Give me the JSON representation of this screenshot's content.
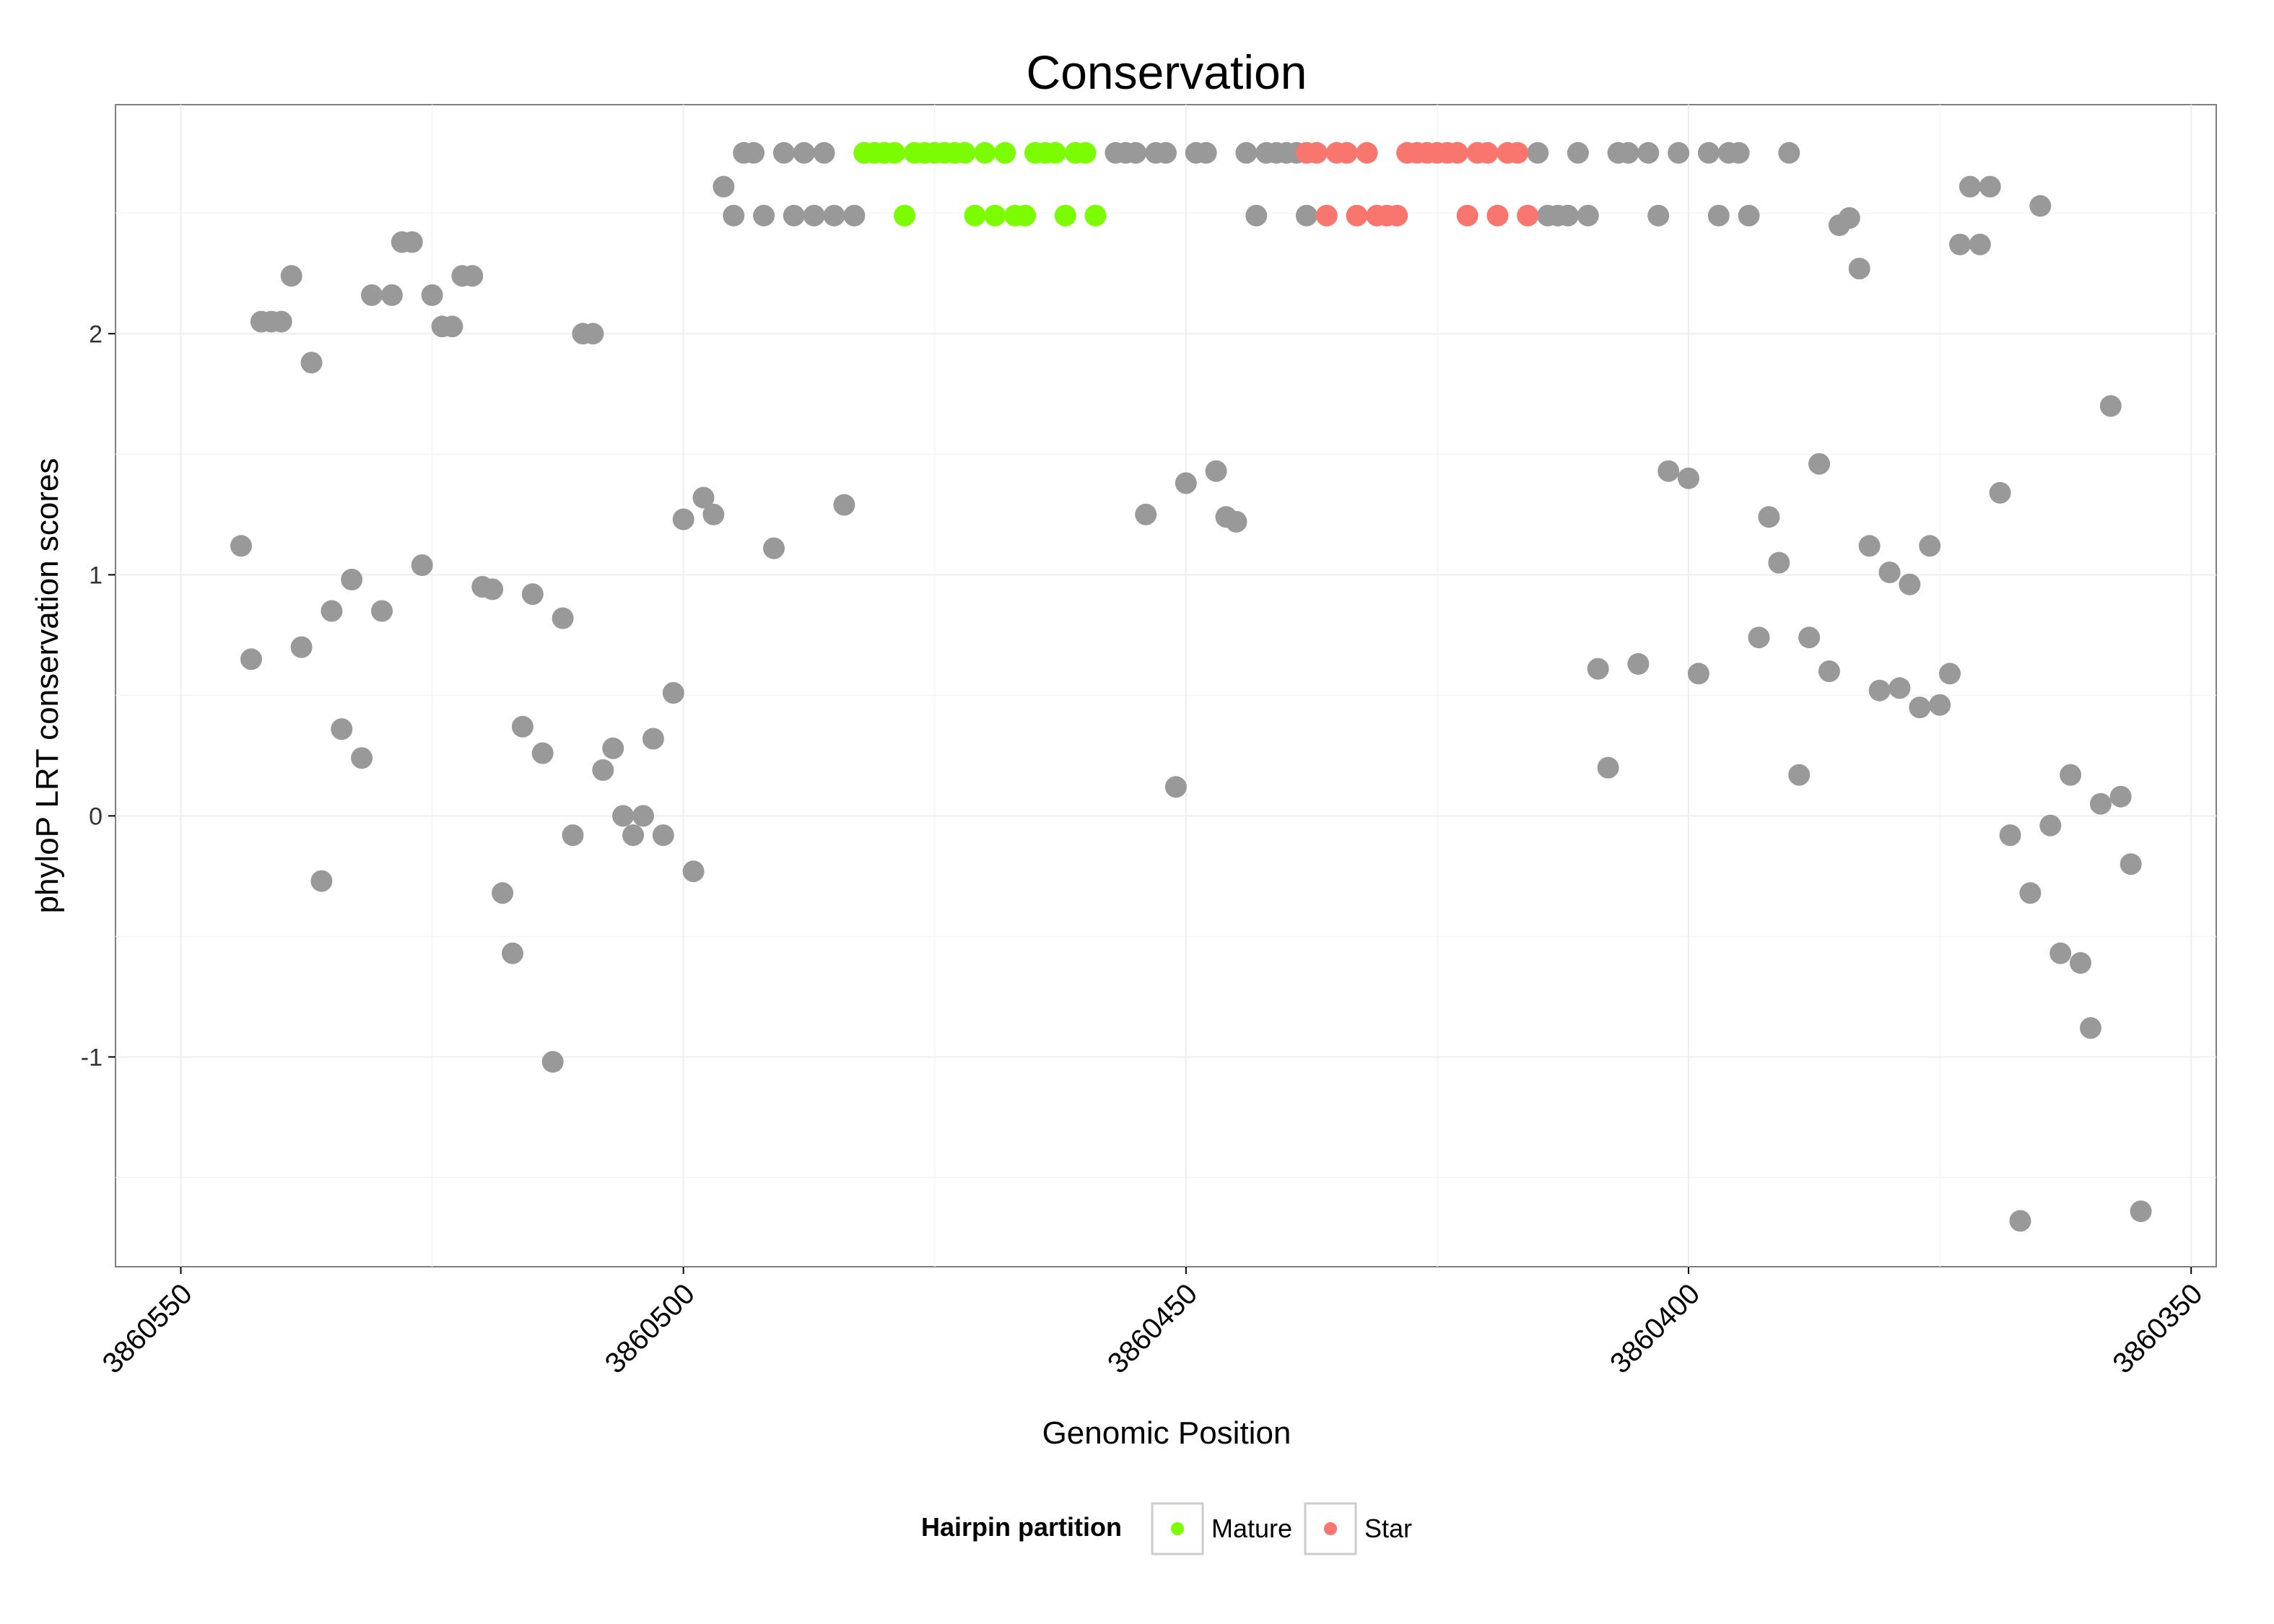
{
  "chart_data": {
    "type": "scatter",
    "title": "Conservation",
    "xlabel": "Genomic Position",
    "ylabel": "phyloP LRT conservation scores",
    "x_reversed": true,
    "xlim": [
      3860556.5,
      3860347.5
    ],
    "ylim": [
      -1.87,
      2.95
    ],
    "x_ticks": [
      3860550,
      3860500,
      3860450,
      3860400,
      3860350
    ],
    "x_tick_labels": [
      "3860550",
      "3860500",
      "3860450",
      "3860400",
      "3860350"
    ],
    "y_ticks": [
      -1,
      0,
      1,
      2
    ],
    "y_tick_labels": [
      "-1",
      "0",
      "1",
      "2"
    ],
    "grid": true,
    "legend": {
      "title": "Hairpin partition",
      "position": "bottom",
      "entries": [
        {
          "name": "Mature",
          "color": "#7CFC00"
        },
        {
          "name": "Star",
          "color": "#F8766D"
        }
      ]
    },
    "colors": {
      "other": "#999999",
      "Mature": "#7CFC00",
      "Star": "#F8766D"
    },
    "series": [
      {
        "group": "other",
        "points": [
          [
            3860544,
            1.12
          ],
          [
            3860543,
            0.65
          ],
          [
            3860542,
            2.05
          ],
          [
            3860541,
            2.05
          ],
          [
            3860540,
            2.05
          ],
          [
            3860539,
            2.24
          ],
          [
            3860538,
            0.7
          ],
          [
            3860537,
            1.88
          ],
          [
            3860536,
            -0.27
          ],
          [
            3860535,
            0.85
          ],
          [
            3860534,
            0.36
          ],
          [
            3860533,
            0.98
          ],
          [
            3860532,
            0.24
          ],
          [
            3860531,
            2.16
          ],
          [
            3860530,
            0.85
          ],
          [
            3860529,
            2.16
          ],
          [
            3860528,
            2.38
          ],
          [
            3860527,
            2.38
          ],
          [
            3860526,
            1.04
          ],
          [
            3860525,
            2.16
          ],
          [
            3860524,
            2.03
          ],
          [
            3860523,
            2.03
          ],
          [
            3860522,
            2.24
          ],
          [
            3860521,
            2.24
          ],
          [
            3860520,
            0.95
          ],
          [
            3860519,
            0.94
          ],
          [
            3860518,
            -0.32
          ],
          [
            3860517,
            -0.57
          ],
          [
            3860516,
            0.37
          ],
          [
            3860515,
            0.92
          ],
          [
            3860514,
            0.26
          ],
          [
            3860513,
            -1.02
          ],
          [
            3860512,
            0.82
          ],
          [
            3860511,
            -0.08
          ],
          [
            3860510,
            2.0
          ],
          [
            3860509,
            2.0
          ],
          [
            3860508,
            0.19
          ],
          [
            3860507,
            0.28
          ],
          [
            3860506,
            0.0
          ],
          [
            3860505,
            -0.08
          ],
          [
            3860504,
            0.0
          ],
          [
            3860503,
            0.32
          ],
          [
            3860502,
            -0.08
          ],
          [
            3860501,
            0.51
          ],
          [
            3860500,
            1.23
          ],
          [
            3860499,
            -0.23
          ],
          [
            3860498,
            1.32
          ],
          [
            3860497,
            1.25
          ],
          [
            3860496,
            2.61
          ],
          [
            3860495,
            2.49
          ],
          [
            3860494,
            2.75
          ],
          [
            3860493,
            2.75
          ],
          [
            3860492,
            2.49
          ],
          [
            3860491,
            1.11
          ],
          [
            3860490,
            2.75
          ],
          [
            3860489,
            2.49
          ],
          [
            3860488,
            2.75
          ],
          [
            3860487,
            2.49
          ],
          [
            3860486,
            2.75
          ],
          [
            3860485,
            2.49
          ],
          [
            3860484,
            1.29
          ],
          [
            3860483,
            2.49
          ],
          [
            3860482,
            2.75
          ],
          [
            3860457,
            2.75
          ],
          [
            3860456,
            2.75
          ],
          [
            3860455,
            2.75
          ],
          [
            3860454,
            1.25
          ],
          [
            3860453,
            2.75
          ],
          [
            3860452,
            2.75
          ],
          [
            3860451,
            0.12
          ],
          [
            3860450,
            1.38
          ],
          [
            3860449,
            2.75
          ],
          [
            3860448,
            2.75
          ],
          [
            3860447,
            1.43
          ],
          [
            3860446,
            1.24
          ],
          [
            3860445,
            1.22
          ],
          [
            3860444,
            2.75
          ],
          [
            3860443,
            2.49
          ],
          [
            3860442,
            2.75
          ],
          [
            3860441,
            2.75
          ],
          [
            3860440,
            2.75
          ],
          [
            3860439,
            2.75
          ],
          [
            3860438,
            2.49
          ],
          [
            3860415,
            2.75
          ],
          [
            3860414,
            2.49
          ],
          [
            3860413,
            2.49
          ],
          [
            3860412,
            2.49
          ],
          [
            3860411,
            2.75
          ],
          [
            3860410,
            2.49
          ],
          [
            3860409,
            0.61
          ],
          [
            3860408,
            0.2
          ],
          [
            3860407,
            2.75
          ],
          [
            3860406,
            2.75
          ],
          [
            3860405,
            0.63
          ],
          [
            3860404,
            2.75
          ],
          [
            3860403,
            2.49
          ],
          [
            3860402,
            1.43
          ],
          [
            3860401,
            2.75
          ],
          [
            3860400,
            1.4
          ],
          [
            3860399,
            0.59
          ],
          [
            3860398,
            2.75
          ],
          [
            3860397,
            2.49
          ],
          [
            3860396,
            2.75
          ],
          [
            3860395,
            2.75
          ],
          [
            3860394,
            2.49
          ],
          [
            3860393,
            0.74
          ],
          [
            3860392,
            1.24
          ],
          [
            3860391,
            1.05
          ],
          [
            3860390,
            2.75
          ],
          [
            3860389,
            0.17
          ],
          [
            3860388,
            0.74
          ],
          [
            3860387,
            1.46
          ],
          [
            3860386,
            0.6
          ],
          [
            3860385,
            2.45
          ],
          [
            3860384,
            2.48
          ],
          [
            3860383,
            2.27
          ],
          [
            3860382,
            1.12
          ],
          [
            3860381,
            0.52
          ],
          [
            3860380,
            1.01
          ],
          [
            3860379,
            0.53
          ],
          [
            3860378,
            0.96
          ],
          [
            3860377,
            0.45
          ],
          [
            3860376,
            1.12
          ],
          [
            3860375,
            0.46
          ],
          [
            3860374,
            0.59
          ],
          [
            3860373,
            2.37
          ],
          [
            3860372,
            2.61
          ],
          [
            3860371,
            2.37
          ],
          [
            3860370,
            2.61
          ],
          [
            3860369,
            1.34
          ],
          [
            3860368,
            -0.08
          ],
          [
            3860367,
            -1.68
          ],
          [
            3860366,
            -0.32
          ],
          [
            3860365,
            2.53
          ],
          [
            3860364,
            -0.04
          ],
          [
            3860363,
            -0.57
          ],
          [
            3860362,
            0.17
          ],
          [
            3860361,
            -0.61
          ],
          [
            3860360,
            -0.88
          ],
          [
            3860359,
            0.05
          ],
          [
            3860358,
            1.7
          ],
          [
            3860357,
            0.08
          ],
          [
            3860356,
            -0.2
          ],
          [
            3860355,
            -1.64
          ]
        ]
      },
      {
        "group": "Mature",
        "name": "Mature",
        "points": [
          [
            3860482,
            2.75
          ],
          [
            3860481,
            2.75
          ],
          [
            3860480,
            2.75
          ],
          [
            3860479,
            2.75
          ],
          [
            3860478,
            2.49
          ],
          [
            3860477,
            2.75
          ],
          [
            3860476,
            2.75
          ],
          [
            3860475,
            2.75
          ],
          [
            3860474,
            2.75
          ],
          [
            3860473,
            2.75
          ],
          [
            3860472,
            2.75
          ],
          [
            3860471,
            2.49
          ],
          [
            3860470,
            2.75
          ],
          [
            3860469,
            2.49
          ],
          [
            3860468,
            2.75
          ],
          [
            3860467,
            2.49
          ],
          [
            3860466,
            2.49
          ],
          [
            3860465,
            2.75
          ],
          [
            3860464,
            2.75
          ],
          [
            3860463,
            2.75
          ],
          [
            3860462,
            2.49
          ],
          [
            3860461,
            2.75
          ],
          [
            3860460,
            2.75
          ],
          [
            3860459,
            2.49
          ]
        ]
      },
      {
        "group": "Star",
        "name": "Star",
        "points": [
          [
            3860438,
            2.75
          ],
          [
            3860437,
            2.75
          ],
          [
            3860436,
            2.49
          ],
          [
            3860435,
            2.75
          ],
          [
            3860434,
            2.75
          ],
          [
            3860433,
            2.49
          ],
          [
            3860432,
            2.75
          ],
          [
            3860431,
            2.49
          ],
          [
            3860430,
            2.49
          ],
          [
            3860429,
            2.49
          ],
          [
            3860428,
            2.75
          ],
          [
            3860427,
            2.75
          ],
          [
            3860426,
            2.75
          ],
          [
            3860425,
            2.75
          ],
          [
            3860424,
            2.75
          ],
          [
            3860423,
            2.75
          ],
          [
            3860422,
            2.49
          ],
          [
            3860421,
            2.75
          ],
          [
            3860420,
            2.75
          ],
          [
            3860419,
            2.49
          ],
          [
            3860418,
            2.75
          ],
          [
            3860417,
            2.75
          ],
          [
            3860416,
            2.49
          ]
        ]
      }
    ]
  }
}
